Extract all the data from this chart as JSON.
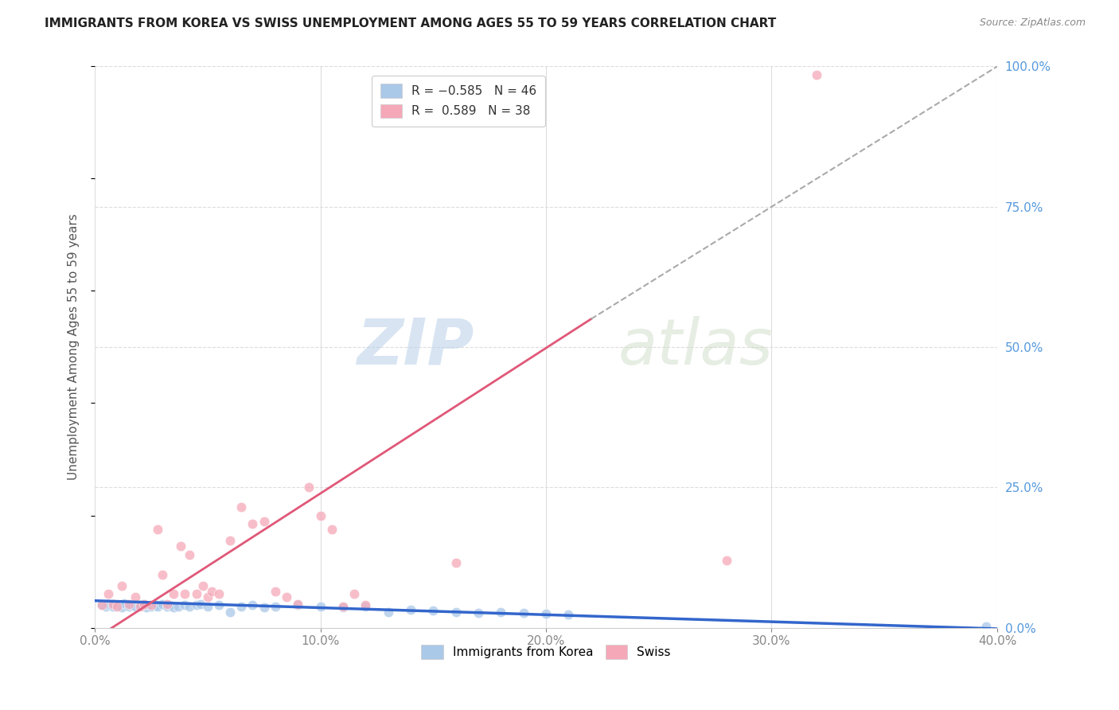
{
  "title": "IMMIGRANTS FROM KOREA VS SWISS UNEMPLOYMENT AMONG AGES 55 TO 59 YEARS CORRELATION CHART",
  "source": "Source: ZipAtlas.com",
  "ylabel_label": "Unemployment Among Ages 55 to 59 years",
  "x_ticklabels": [
    "0.0%",
    "10.0%",
    "20.0%",
    "30.0%",
    "40.0%"
  ],
  "x_ticks": [
    0.0,
    0.1,
    0.2,
    0.3,
    0.4
  ],
  "y_ticks": [
    0.0,
    0.25,
    0.5,
    0.75,
    1.0
  ],
  "y_ticklabels": [
    "0.0%",
    "25.0%",
    "50.0%",
    "75.0%",
    "100.0%"
  ],
  "xlim": [
    0.0,
    0.4
  ],
  "ylim": [
    0.0,
    1.0
  ],
  "watermark_zip": "ZIP",
  "watermark_atlas": "atlas",
  "blue_line": {
    "x": [
      0.0,
      0.4
    ],
    "y": [
      0.048,
      -0.002
    ]
  },
  "red_line": {
    "x": [
      0.0,
      0.22
    ],
    "y": [
      -0.02,
      0.55
    ]
  },
  "dashed_line": {
    "x": [
      0.22,
      0.4
    ],
    "y": [
      0.55,
      1.0
    ]
  },
  "korea_dots": [
    [
      0.003,
      0.04
    ],
    [
      0.005,
      0.038
    ],
    [
      0.006,
      0.042
    ],
    [
      0.008,
      0.038
    ],
    [
      0.01,
      0.04
    ],
    [
      0.012,
      0.036
    ],
    [
      0.013,
      0.044
    ],
    [
      0.015,
      0.038
    ],
    [
      0.016,
      0.04
    ],
    [
      0.018,
      0.038
    ],
    [
      0.02,
      0.04
    ],
    [
      0.022,
      0.042
    ],
    [
      0.023,
      0.036
    ],
    [
      0.025,
      0.038
    ],
    [
      0.027,
      0.04
    ],
    [
      0.028,
      0.038
    ],
    [
      0.03,
      0.042
    ],
    [
      0.032,
      0.038
    ],
    [
      0.033,
      0.04
    ],
    [
      0.035,
      0.036
    ],
    [
      0.037,
      0.038
    ],
    [
      0.04,
      0.04
    ],
    [
      0.042,
      0.038
    ],
    [
      0.045,
      0.04
    ],
    [
      0.047,
      0.042
    ],
    [
      0.05,
      0.038
    ],
    [
      0.055,
      0.04
    ],
    [
      0.06,
      0.028
    ],
    [
      0.065,
      0.038
    ],
    [
      0.07,
      0.04
    ],
    [
      0.075,
      0.036
    ],
    [
      0.08,
      0.038
    ],
    [
      0.09,
      0.04
    ],
    [
      0.1,
      0.038
    ],
    [
      0.11,
      0.036
    ],
    [
      0.12,
      0.038
    ],
    [
      0.13,
      0.028
    ],
    [
      0.14,
      0.032
    ],
    [
      0.15,
      0.03
    ],
    [
      0.16,
      0.028
    ],
    [
      0.17,
      0.026
    ],
    [
      0.18,
      0.028
    ],
    [
      0.19,
      0.026
    ],
    [
      0.2,
      0.025
    ],
    [
      0.21,
      0.024
    ],
    [
      0.395,
      0.002
    ]
  ],
  "swiss_dots": [
    [
      0.003,
      0.04
    ],
    [
      0.006,
      0.06
    ],
    [
      0.008,
      0.042
    ],
    [
      0.01,
      0.038
    ],
    [
      0.012,
      0.075
    ],
    [
      0.015,
      0.042
    ],
    [
      0.018,
      0.055
    ],
    [
      0.02,
      0.038
    ],
    [
      0.022,
      0.042
    ],
    [
      0.025,
      0.04
    ],
    [
      0.028,
      0.175
    ],
    [
      0.03,
      0.095
    ],
    [
      0.032,
      0.042
    ],
    [
      0.035,
      0.06
    ],
    [
      0.038,
      0.145
    ],
    [
      0.04,
      0.06
    ],
    [
      0.042,
      0.13
    ],
    [
      0.045,
      0.06
    ],
    [
      0.048,
      0.075
    ],
    [
      0.05,
      0.055
    ],
    [
      0.052,
      0.065
    ],
    [
      0.055,
      0.06
    ],
    [
      0.06,
      0.155
    ],
    [
      0.065,
      0.215
    ],
    [
      0.07,
      0.185
    ],
    [
      0.075,
      0.19
    ],
    [
      0.08,
      0.065
    ],
    [
      0.085,
      0.055
    ],
    [
      0.09,
      0.042
    ],
    [
      0.095,
      0.25
    ],
    [
      0.1,
      0.2
    ],
    [
      0.105,
      0.175
    ],
    [
      0.11,
      0.038
    ],
    [
      0.115,
      0.06
    ],
    [
      0.12,
      0.04
    ],
    [
      0.16,
      0.115
    ],
    [
      0.28,
      0.12
    ],
    [
      0.32,
      0.985
    ]
  ],
  "background_color": "#ffffff",
  "grid_color": "#dddddd",
  "title_color": "#222222",
  "korea_dot_color": "#aac8e8",
  "swiss_dot_color": "#f5a8b8",
  "blue_line_color": "#3366cc",
  "red_line_color": "#e05878",
  "dashed_line_color": "#aaaaaa",
  "right_tick_color": "#5599dd"
}
